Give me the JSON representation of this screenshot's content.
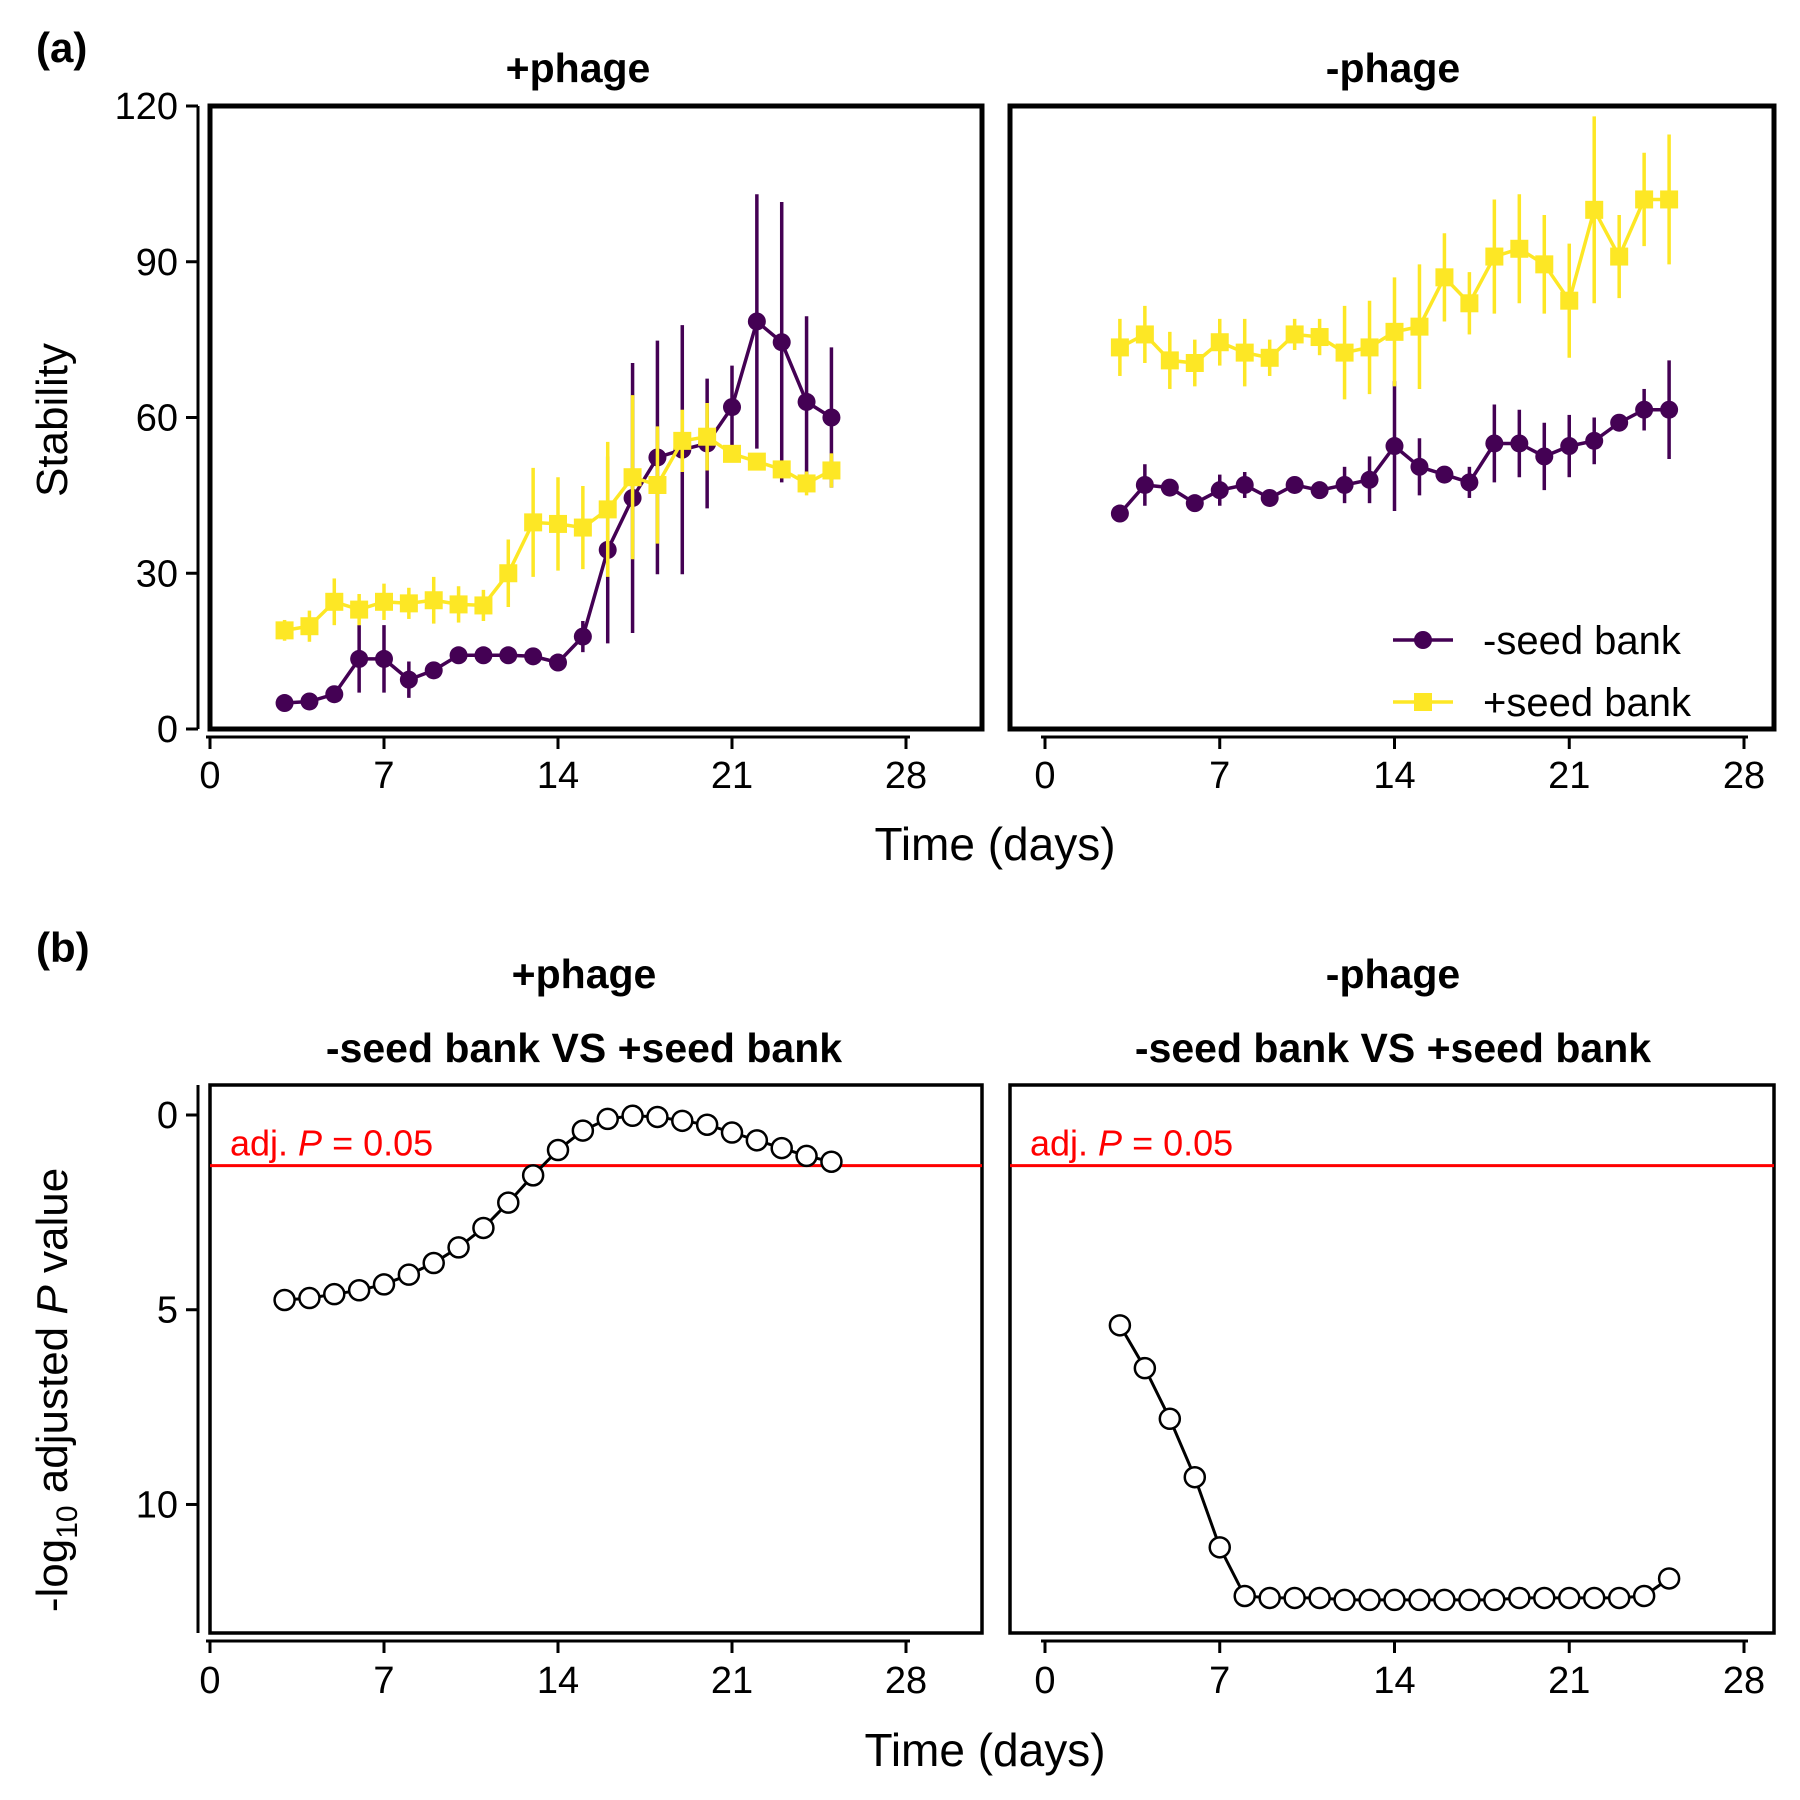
{
  "xlabel": "Time (days)",
  "x_ticks": [
    0,
    7,
    14,
    21,
    28
  ],
  "colors": {
    "minus_seed_bank": "#440154",
    "plus_seed_bank": "#FDE725",
    "threshold": "#FF0000",
    "axis": "#000000"
  },
  "panel_a": {
    "label": "(a)",
    "ylabel": "Stability",
    "y_ticks": [
      0,
      30,
      60,
      90,
      120
    ],
    "legend": {
      "placement": "bottom-right",
      "items": [
        "-seed bank",
        "+seed bank"
      ]
    }
  },
  "panel_b": {
    "label": "(b)",
    "ylabel_pre": "-log",
    "ylabel_sub": "10",
    "ylabel_mid": " adjusted ",
    "ylabel_p": "P",
    "ylabel_post": " value",
    "y_ticks": [
      0,
      5,
      10
    ],
    "threshold_pre": "adj. ",
    "threshold_p": "P",
    "threshold_post": " = 0.05"
  },
  "chart_data": [
    {
      "type": "line",
      "title": "+phage",
      "xlabel": "Time (days)",
      "ylabel": "Stability",
      "xlim": [
        -1.5,
        28.5
      ],
      "ylim": [
        0,
        120
      ],
      "series": [
        {
          "name": "-seed bank",
          "x": [
            3,
            4,
            5,
            6,
            7,
            8,
            9,
            10,
            11,
            12,
            13,
            14,
            15,
            16,
            17,
            18,
            19,
            20,
            21,
            22,
            23,
            24,
            25
          ],
          "y": [
            5,
            5.3,
            6.7,
            13.5,
            13.5,
            9.5,
            11.3,
            14.2,
            14.2,
            14.2,
            14,
            12.8,
            17.8,
            34.5,
            44.5,
            52.3,
            53.8,
            55,
            62,
            78.5,
            74.5,
            63,
            60
          ],
          "err": [
            0,
            0,
            0,
            6.5,
            6.5,
            3.5,
            0,
            0,
            0,
            0,
            0,
            0,
            3,
            18,
            26,
            22.5,
            24,
            12.5,
            8,
            24.5,
            27,
            16.5,
            13.5
          ]
        },
        {
          "name": "+seed bank",
          "x": [
            3,
            4,
            5,
            6,
            7,
            8,
            9,
            10,
            11,
            12,
            13,
            14,
            15,
            16,
            17,
            18,
            19,
            20,
            21,
            22,
            23,
            24,
            25
          ],
          "y": [
            19,
            19.8,
            24.5,
            23,
            24.5,
            24.2,
            24.8,
            24,
            23.8,
            30,
            39.8,
            39.5,
            38.8,
            42.3,
            48.5,
            47,
            55.5,
            56.3,
            53,
            51.5,
            50,
            47.3,
            49.8
          ],
          "err": [
            2,
            3,
            4.5,
            3,
            3.5,
            3,
            4.5,
            3.5,
            3,
            6.5,
            10.5,
            9,
            8,
            13,
            15.8,
            11.3,
            6,
            6.5,
            0,
            0,
            0,
            2.3,
            3.3
          ]
        }
      ]
    },
    {
      "type": "line",
      "title": "-phage",
      "xlabel": "Time (days)",
      "ylabel": "Stability",
      "xlim": [
        -1.5,
        28.5
      ],
      "ylim": [
        0,
        120
      ],
      "series": [
        {
          "name": "-seed bank",
          "x": [
            3,
            4,
            5,
            6,
            7,
            8,
            9,
            10,
            11,
            12,
            13,
            14,
            15,
            16,
            17,
            18,
            19,
            20,
            21,
            22,
            23,
            24,
            25
          ],
          "y": [
            41.5,
            47,
            46.5,
            43.5,
            46,
            47,
            44.5,
            47,
            46,
            47,
            48,
            54.5,
            50.5,
            49,
            47.5,
            55,
            55,
            52.5,
            54.5,
            55.5,
            59,
            61.5,
            61.5
          ],
          "err": [
            0,
            4,
            0,
            0,
            3,
            2.5,
            0,
            0,
            0,
            3.5,
            4.5,
            12.5,
            5.5,
            0,
            3,
            7.5,
            6.5,
            6.5,
            6,
            4.5,
            0,
            4,
            9.5
          ]
        },
        {
          "name": "+seed bank",
          "x": [
            3,
            4,
            5,
            6,
            7,
            8,
            9,
            10,
            11,
            12,
            13,
            14,
            15,
            16,
            17,
            18,
            19,
            20,
            21,
            22,
            23,
            24,
            25
          ],
          "y": [
            73.5,
            76,
            71,
            70.5,
            74.5,
            72.5,
            71.5,
            76,
            75.5,
            72.5,
            73.5,
            76.5,
            77.5,
            87,
            82,
            91,
            92.5,
            89.5,
            82.5,
            100,
            91,
            102,
            102
          ],
          "err": [
            5.5,
            5.5,
            5.5,
            4.5,
            4.5,
            6.5,
            3.5,
            3,
            3.5,
            9,
            9,
            10.5,
            12,
            8.5,
            6,
            11,
            10.5,
            9.5,
            11,
            18,
            8,
            9,
            12.5
          ]
        }
      ]
    },
    {
      "type": "line",
      "title": "+phage",
      "subtitle": "-seed bank VS +seed bank",
      "xlabel": "Time (days)",
      "ylabel": "-log10 adjusted P value",
      "y_reversed": true,
      "xlim": [
        -1.5,
        28.5
      ],
      "ylim": [
        -0.5,
        13
      ],
      "threshold": {
        "label": "adj. P = 0.05",
        "value": 1.3
      },
      "series": [
        {
          "x": [
            3,
            4,
            5,
            6,
            7,
            8,
            9,
            10,
            11,
            12,
            13,
            14,
            15,
            16,
            17,
            18,
            19,
            20,
            21,
            22,
            23,
            24,
            25
          ],
          "y": [
            4.75,
            4.7,
            4.6,
            4.5,
            4.35,
            4.1,
            3.8,
            3.4,
            2.9,
            2.25,
            1.55,
            0.9,
            0.4,
            0.1,
            0.02,
            0.05,
            0.15,
            0.25,
            0.45,
            0.65,
            0.85,
            1.05,
            1.2
          ]
        }
      ]
    },
    {
      "type": "line",
      "title": "-phage",
      "subtitle": "-seed bank VS +seed bank",
      "xlabel": "Time (days)",
      "ylabel": "-log10 adjusted P value",
      "y_reversed": true,
      "xlim": [
        -1.5,
        28.5
      ],
      "ylim": [
        -0.5,
        13
      ],
      "threshold": {
        "label": "adj. P = 0.05",
        "value": 1.3
      },
      "series": [
        {
          "x": [
            3,
            4,
            5,
            6,
            7,
            8,
            9,
            10,
            11,
            12,
            13,
            14,
            15,
            16,
            17,
            18,
            19,
            20,
            21,
            22,
            23,
            24,
            25
          ],
          "y": [
            5.4,
            6.5,
            7.8,
            9.3,
            11.1,
            12.35,
            12.4,
            12.4,
            12.4,
            12.45,
            12.45,
            12.45,
            12.45,
            12.45,
            12.45,
            12.45,
            12.4,
            12.4,
            12.4,
            12.4,
            12.4,
            12.35,
            11.9
          ]
        }
      ]
    }
  ]
}
